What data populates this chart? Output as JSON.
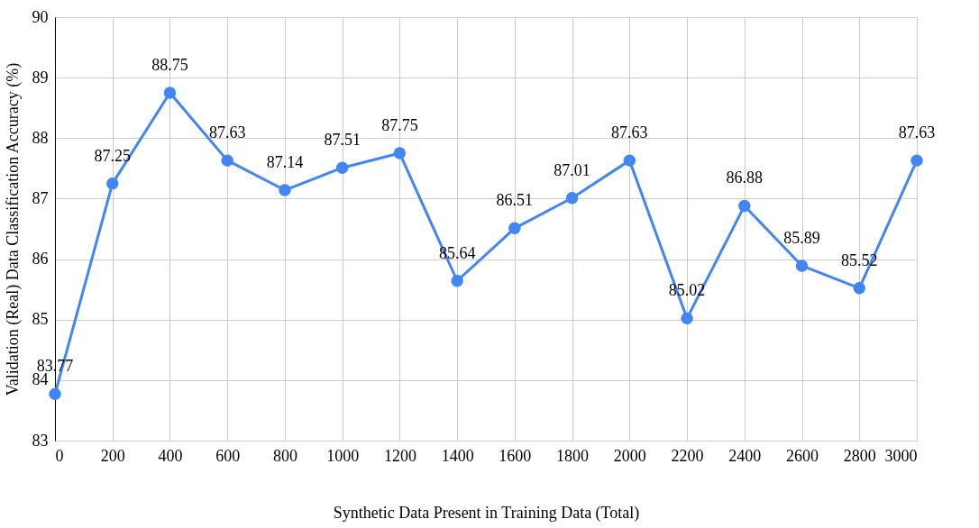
{
  "chart_data": {
    "type": "line",
    "xlabel": "Synthetic Data Present in Training Data (Total)",
    "ylabel": "Validation (Real) Data Classification Accuracy (%)",
    "x": [
      0,
      200,
      400,
      600,
      800,
      1000,
      1200,
      1400,
      1600,
      1800,
      2000,
      2200,
      2400,
      2600,
      2800,
      3000
    ],
    "series": [
      {
        "color": "#4285f4",
        "values": [
          83.77,
          87.25,
          88.75,
          87.63,
          87.14,
          87.51,
          87.75,
          85.64,
          86.51,
          87.01,
          87.63,
          85.02,
          86.88,
          85.89,
          85.52,
          87.63
        ]
      }
    ],
    "xlim": [
      0,
      3000
    ],
    "xticks": [
      0,
      200,
      400,
      600,
      800,
      1000,
      1200,
      1400,
      1600,
      1800,
      2000,
      2200,
      2400,
      2600,
      2800,
      3000
    ],
    "ylim": [
      83,
      90
    ],
    "yticks": [
      83,
      84,
      85,
      86,
      87,
      88,
      89,
      90
    ],
    "grid": true,
    "marker": "circle",
    "line_style": "solid",
    "data_labels": true
  }
}
